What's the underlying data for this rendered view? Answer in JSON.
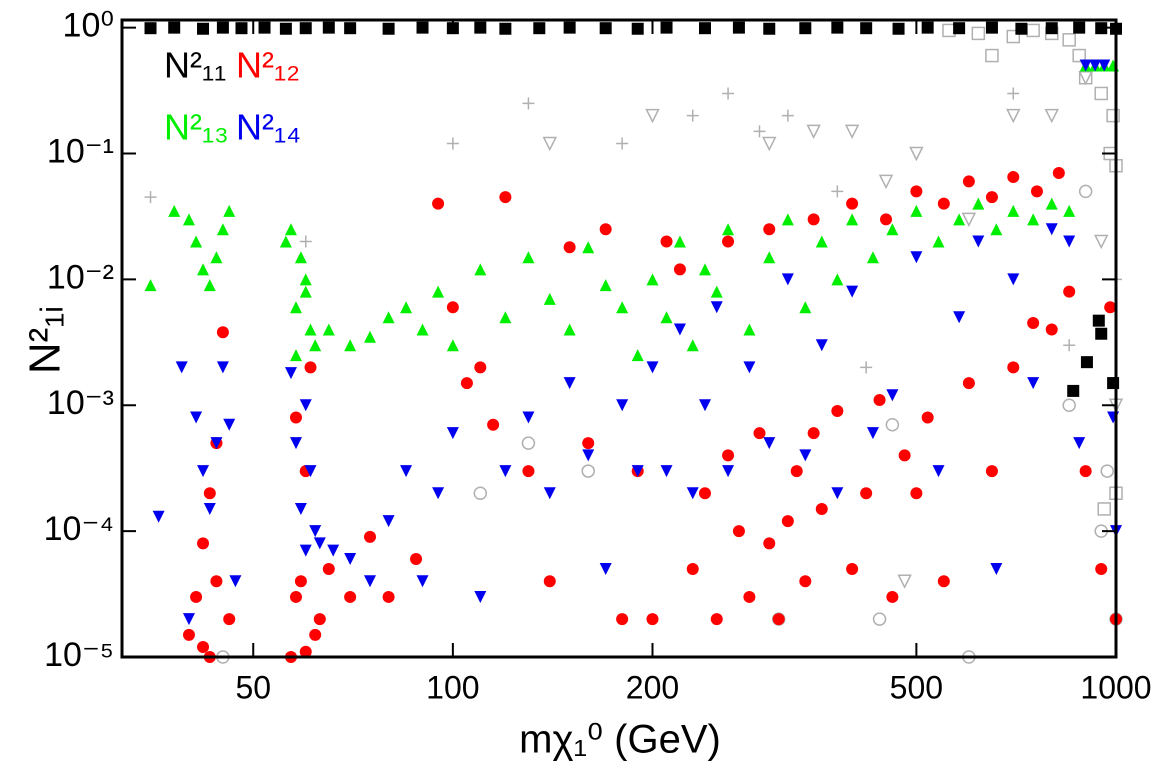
{
  "chart_data": {
    "type": "scatter",
    "x_label": "mχ₁⁰ (GeV)",
    "y_label": "N²₁ᵢ",
    "xscale": "log",
    "yscale": "log",
    "xlim": [
      31.7,
      1000
    ],
    "ylim": [
      1e-05,
      1.15
    ],
    "xticks": [
      50,
      100,
      200,
      500,
      1000
    ],
    "yticks": [
      {
        "value": 1e-05,
        "label": "10⁻⁵"
      },
      {
        "value": 0.0001,
        "label": "10⁻⁴"
      },
      {
        "value": 0.001,
        "label": "10⁻³"
      },
      {
        "value": 0.01,
        "label": "10⁻²"
      },
      {
        "value": 0.1,
        "label": "10⁻¹"
      },
      {
        "value": 1,
        "label": "10⁰"
      }
    ],
    "legend": "upper left",
    "series": [
      {
        "name": "N²₁₁",
        "color": "#000000",
        "marker": "square",
        "x": [
          35,
          38,
          42,
          45,
          48,
          52,
          56,
          60,
          65,
          70,
          80,
          90,
          100,
          110,
          120,
          135,
          150,
          170,
          190,
          210,
          240,
          270,
          300,
          340,
          380,
          420,
          470,
          520,
          580,
          650,
          720,
          800,
          880,
          950,
          1000,
          942,
          950,
          904,
          990,
          862
        ],
        "values": [
          0.99,
          1,
          0.98,
          1,
          0.99,
          1,
          0.98,
          0.99,
          1,
          0.99,
          0.98,
          1,
          0.99,
          1,
          0.98,
          0.99,
          1,
          0.99,
          0.98,
          1,
          0.99,
          1,
          0.98,
          0.99,
          1,
          0.99,
          0.98,
          1,
          0.99,
          1,
          0.98,
          0.99,
          1,
          0.99,
          0.98,
          0.0047,
          0.0037,
          0.0022,
          0.0015,
          0.0013
        ]
      },
      {
        "name": "N²₁₂",
        "color": "#ff0000",
        "marker": "circle",
        "x": [
          40,
          41,
          42,
          43,
          44,
          45,
          43,
          42,
          44,
          46,
          57,
          58,
          59,
          60,
          61,
          62,
          58,
          60,
          63,
          65,
          70,
          75,
          80,
          88,
          95,
          100,
          105,
          110,
          115,
          120,
          130,
          140,
          150,
          160,
          170,
          180,
          190,
          200,
          210,
          220,
          230,
          240,
          250,
          260,
          270,
          280,
          290,
          300,
          310,
          320,
          330,
          340,
          350,
          360,
          380,
          400,
          420,
          440,
          460,
          480,
          500,
          520,
          550,
          600,
          650,
          700,
          750,
          800,
          850,
          260,
          300,
          350,
          400,
          450,
          500,
          550,
          600,
          650,
          700,
          760,
          820,
          900,
          950,
          980,
          1000
        ],
        "values": [
          1.5e-05,
          3e-05,
          8e-05,
          0.0002,
          0.0005,
          0.0038,
          1e-05,
          1.2e-05,
          4e-05,
          2e-05,
          1e-05,
          3e-05,
          4e-05,
          0.0003,
          0.002,
          1.5e-05,
          0.0008,
          1.1e-05,
          2e-05,
          5e-05,
          3e-05,
          9e-05,
          3e-05,
          6e-05,
          0.04,
          0.006,
          0.0015,
          0.002,
          0.0007,
          0.045,
          0.0003,
          4e-05,
          0.018,
          0.0005,
          0.025,
          2e-05,
          0.0003,
          2e-05,
          0.02,
          0.012,
          5e-05,
          0.0002,
          2e-05,
          0.0004,
          0.0001,
          3e-05,
          0.0006,
          8e-05,
          2e-05,
          0.00012,
          0.0003,
          4e-05,
          0.0006,
          0.00015,
          0.0009,
          5e-05,
          0.0002,
          0.0011,
          3e-05,
          0.0004,
          0.0002,
          0.0008,
          4e-05,
          0.0015,
          0.0003,
          0.002,
          0.0045,
          0.004,
          0.008,
          0.02,
          0.025,
          0.03,
          0.04,
          0.03,
          0.05,
          0.04,
          0.06,
          0.045,
          0.065,
          0.05,
          0.07,
          0.0003,
          5e-05,
          0.006,
          2e-05
        ]
      },
      {
        "name": "N²₁₃",
        "color": "#00ee00",
        "marker": "triangle-up",
        "x": [
          35,
          38,
          40,
          41,
          42,
          43,
          44,
          45,
          46,
          56,
          57,
          58,
          59,
          60,
          61,
          62,
          58,
          60,
          65,
          70,
          75,
          80,
          85,
          90,
          95,
          100,
          110,
          120,
          130,
          140,
          150,
          160,
          170,
          180,
          190,
          200,
          210,
          220,
          230,
          240,
          250,
          260,
          280,
          300,
          320,
          340,
          360,
          380,
          400,
          430,
          460,
          500,
          540,
          580,
          620,
          660,
          700,
          750,
          800,
          850,
          900,
          930,
          960,
          990
        ],
        "values": [
          0.009,
          0.035,
          0.03,
          0.02,
          0.012,
          0.009,
          0.015,
          0.025,
          0.035,
          0.02,
          0.025,
          0.006,
          0.015,
          0.01,
          0.004,
          0.003,
          0.0025,
          0.008,
          0.004,
          0.003,
          0.0035,
          0.005,
          0.006,
          0.004,
          0.008,
          0.003,
          0.012,
          0.005,
          0.015,
          0.007,
          0.004,
          0.018,
          0.009,
          0.006,
          0.0025,
          0.01,
          0.005,
          0.02,
          0.003,
          0.012,
          0.008,
          0.025,
          0.004,
          0.015,
          0.03,
          0.006,
          0.02,
          0.01,
          0.03,
          0.015,
          0.025,
          0.035,
          0.02,
          0.03,
          0.04,
          0.025,
          0.035,
          0.03,
          0.04,
          0.035,
          0.5,
          0.5,
          0.5,
          0.5
        ]
      },
      {
        "name": "N²₁₄",
        "color": "#0000ee",
        "marker": "triangle-down",
        "x": [
          36,
          39,
          40,
          41,
          42,
          43,
          44,
          45,
          46,
          47,
          57,
          58,
          59,
          60,
          61,
          62,
          63,
          60,
          66,
          70,
          75,
          80,
          85,
          90,
          95,
          100,
          110,
          120,
          130,
          140,
          150,
          160,
          170,
          180,
          190,
          200,
          210,
          220,
          230,
          240,
          250,
          260,
          280,
          300,
          320,
          340,
          360,
          380,
          400,
          430,
          460,
          500,
          540,
          580,
          620,
          660,
          700,
          750,
          800,
          850,
          880,
          900,
          930,
          960,
          990,
          1000
        ],
        "values": [
          0.00013,
          0.002,
          2e-05,
          0.0008,
          0.0003,
          0.00015,
          0.0005,
          0.002,
          0.0007,
          4e-05,
          0.0018,
          0.0005,
          0.00015,
          7e-05,
          0.0003,
          0.0001,
          8e-05,
          0.001,
          7e-05,
          6e-05,
          4e-05,
          0.00012,
          0.0003,
          4e-05,
          0.0002,
          0.0006,
          3e-05,
          0.0003,
          0.0008,
          0.0002,
          0.0015,
          0.0004,
          5e-05,
          0.001,
          0.0003,
          0.002,
          0.0003,
          0.004,
          0.0002,
          0.001,
          0.006,
          0.0003,
          0.002,
          0.0005,
          0.01,
          0.0004,
          0.003,
          0.0002,
          0.008,
          0.0006,
          0.0012,
          0.015,
          0.0003,
          0.005,
          0.02,
          5e-05,
          0.01,
          0.0015,
          0.025,
          0.02,
          0.0005,
          0.5,
          0.5,
          0.5,
          0.0008,
          0.0001
        ]
      },
      {
        "color": "#b0b0b0",
        "marker": "open-square",
        "x": [
          560,
          620,
          700,
          750,
          800,
          850,
          900,
          950,
          980,
          1000,
          650,
          880,
          990,
          1000,
          960
        ],
        "values": [
          0.95,
          0.9,
          0.85,
          0.95,
          0.9,
          0.8,
          0.4,
          0.3,
          0.1,
          0.08,
          0.6,
          0.6,
          0.2,
          0.0002,
          0.00015
        ]
      },
      {
        "color": "#b0b0b0",
        "marker": "open-triangle-down",
        "x": [
          140,
          200,
          300,
          350,
          400,
          450,
          500,
          600,
          700,
          900,
          950,
          1000,
          480,
          800
        ],
        "values": [
          0.12,
          0.2,
          0.12,
          0.15,
          0.15,
          0.06,
          0.1,
          0.03,
          0.2,
          0.4,
          0.02,
          0.001,
          4e-05,
          0.2
        ]
      },
      {
        "color": "#b0b0b0",
        "marker": "plus",
        "x": [
          35,
          60,
          100,
          130,
          180,
          230,
          260,
          290,
          320,
          380,
          420,
          700,
          850,
          1000
        ],
        "values": [
          0.045,
          0.02,
          0.12,
          0.25,
          0.12,
          0.2,
          0.3,
          0.15,
          0.2,
          0.05,
          0.002,
          0.3,
          0.003,
          0.01
        ]
      },
      {
        "color": "#b0b0b0",
        "marker": "open-circle",
        "x": [
          45,
          130,
          110,
          160,
          310,
          440,
          600,
          900,
          970,
          1000,
          850,
          460,
          950
        ],
        "values": [
          1e-05,
          0.0005,
          0.0002,
          0.0003,
          2e-05,
          2e-05,
          1e-05,
          0.05,
          0.0003,
          2e-05,
          0.001,
          0.0007,
          0.0001
        ]
      }
    ]
  }
}
